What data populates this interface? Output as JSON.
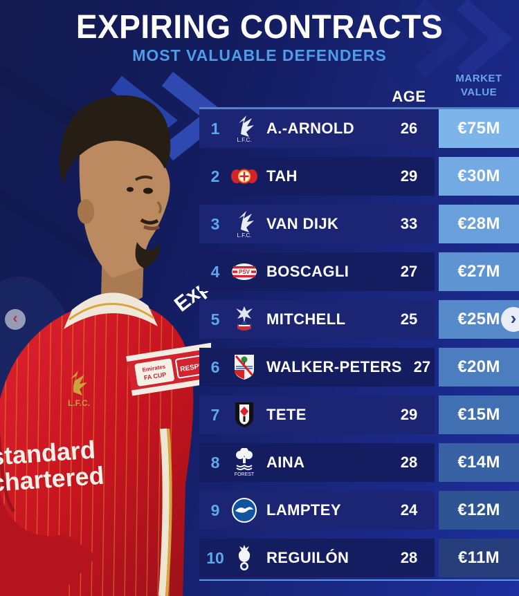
{
  "title": "EXPIRING CONTRACTS",
  "subtitle": "MOST VALUABLE DEFENDERS",
  "columns": {
    "age": "AGE",
    "market_value_line1": "MARKET",
    "market_value_line2": "VALUE"
  },
  "carousel": {
    "prev_icon": "‹",
    "next_icon": "›"
  },
  "colors": {
    "background_left": "#121a4e",
    "background_right": "#1d2f9e",
    "row_odd": "#1b2574",
    "row_even": "#141d60",
    "rank_text": "#5ea7ec",
    "subtitle_text": "#4f9ce8",
    "column_header_text": "#6ba6e8",
    "table_top_border": "#4a86c8",
    "table_bottom_border": "#5a9be0",
    "player_kit_red": "#d41e2a"
  },
  "rows": [
    {
      "rank": "1",
      "player": "A.-ARNOLD",
      "club": "Liverpool",
      "club_icon": "liverpool-badge",
      "club_id": "liverpool",
      "age": "26",
      "value": "€75M",
      "value_bg": "#7db4e9"
    },
    {
      "rank": "2",
      "player": "TAH",
      "club": "Bayer Leverkusen",
      "club_icon": "leverkusen-badge",
      "club_id": "leverkusen",
      "age": "29",
      "value": "€30M",
      "value_bg": "#73aae3"
    },
    {
      "rank": "3",
      "player": "VAN DIJK",
      "club": "Liverpool",
      "club_icon": "liverpool-badge",
      "club_id": "liverpool",
      "age": "33",
      "value": "€28M",
      "value_bg": "#699fdb"
    },
    {
      "rank": "4",
      "player": "BOSCAGLI",
      "club": "PSV Eindhoven",
      "club_icon": "psv-badge",
      "club_id": "psv",
      "age": "27",
      "value": "€27M",
      "value_bg": "#5f94d2"
    },
    {
      "rank": "5",
      "player": "MITCHELL",
      "club": "Crystal Palace",
      "club_icon": "crystal-palace-badge",
      "club_id": "palace",
      "age": "25",
      "value": "€25M",
      "value_bg": "#5589c9"
    },
    {
      "rank": "6",
      "player": "WALKER-PETERS",
      "club": "Southampton",
      "club_icon": "southampton-badge",
      "club_id": "southampton",
      "age": "27",
      "value": "€20M",
      "value_bg": "#4b7dbf"
    },
    {
      "rank": "7",
      "player": "TETE",
      "club": "Fulham",
      "club_icon": "fulham-badge",
      "club_id": "fulham",
      "age": "29",
      "value": "€15M",
      "value_bg": "#4170b2"
    },
    {
      "rank": "8",
      "player": "AINA",
      "club": "Nottingham Forest",
      "club_icon": "nottingham-forest-badge",
      "club_id": "forest",
      "age": "28",
      "value": "€14M",
      "value_bg": "#3862a4"
    },
    {
      "rank": "9",
      "player": "LAMPTEY",
      "club": "Brighton",
      "club_icon": "brighton-badge",
      "club_id": "brighton",
      "age": "24",
      "value": "€12M",
      "value_bg": "#2f5494"
    },
    {
      "rank": "10",
      "player": "REGUILÓN",
      "club": "Tottenham",
      "club_icon": "tottenham-badge",
      "club_id": "tottenham",
      "age": "28",
      "value": "€11M",
      "value_bg": "#263f7c"
    }
  ]
}
